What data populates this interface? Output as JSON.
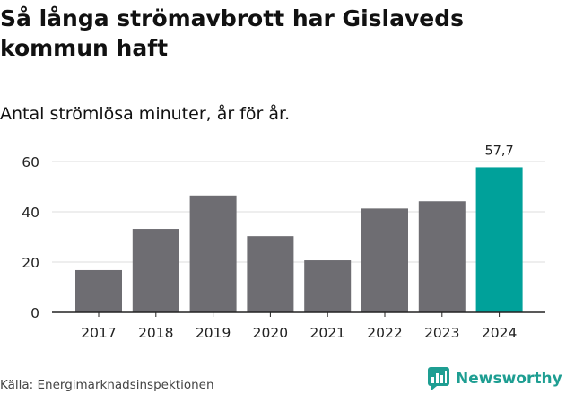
{
  "header": {
    "title": "Så långa strömavbrott har Gislaveds kommun haft",
    "subtitle": "Antal strömlösa minuter, år för år."
  },
  "footer": {
    "source": "Källa: Energimarknadsinspektionen",
    "brand": "Newsworthy"
  },
  "colors": {
    "bar": "#6e6d72",
    "highlight": "#00a19a",
    "brand": "#1e9e92"
  },
  "chart_data": {
    "type": "bar",
    "title": "Så långa strömavbrott har Gislaveds kommun haft",
    "subtitle": "Antal strömlösa minuter, år för år.",
    "categories": [
      "2017",
      "2018",
      "2019",
      "2020",
      "2021",
      "2022",
      "2023",
      "2024"
    ],
    "values": [
      16.8,
      33.2,
      46.5,
      30.3,
      20.7,
      41.3,
      44.2,
      57.7
    ],
    "highlight_index": 7,
    "data_labels": [
      {
        "index": 7,
        "text": "57,7"
      }
    ],
    "yticks": [
      0,
      20,
      40,
      60
    ],
    "ylim": [
      0,
      60
    ],
    "xlabel": "",
    "ylabel": "",
    "grid": true
  }
}
